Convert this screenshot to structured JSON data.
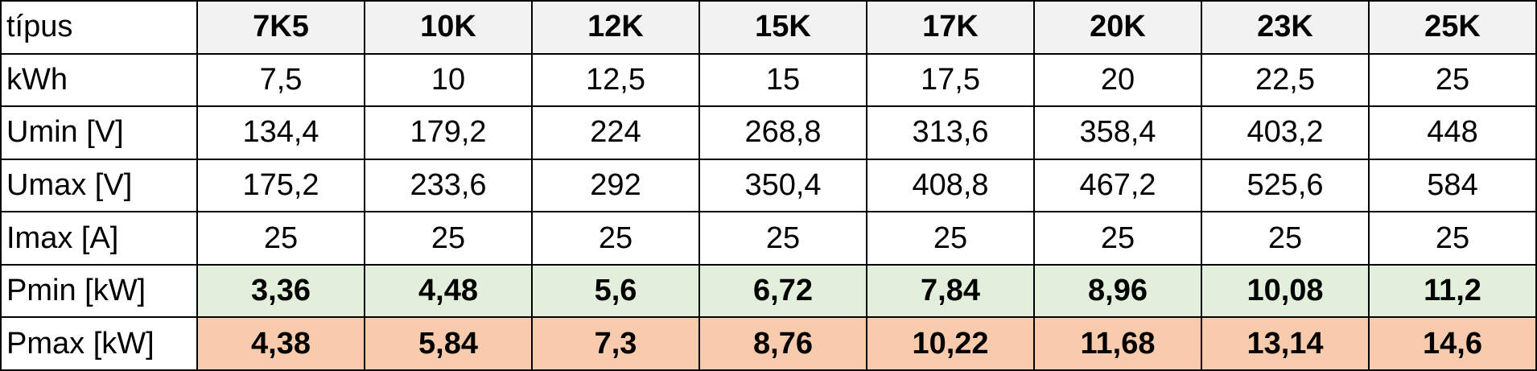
{
  "table": {
    "header": [
      "típus",
      "7K5",
      "10K",
      "12K",
      "15K",
      "17K",
      "20K",
      "23K",
      "25K"
    ],
    "rows": [
      [
        "kWh",
        "7,5",
        "10",
        "12,5",
        "15",
        "17,5",
        "20",
        "22,5",
        "25"
      ],
      [
        "Umin [V]",
        "134,4",
        "179,2",
        "224",
        "268,8",
        "313,6",
        "358,4",
        "403,2",
        "448"
      ],
      [
        "Umax [V]",
        "175,2",
        "233,6",
        "292",
        "350,4",
        "408,8",
        "467,2",
        "525,6",
        "584"
      ],
      [
        "Imax [A]",
        "25",
        "25",
        "25",
        "25",
        "25",
        "25",
        "25",
        "25"
      ],
      [
        "Pmin [kW]",
        "3,36",
        "4,48",
        "5,6",
        "6,72",
        "7,84",
        "8,96",
        "10,08",
        "11,2"
      ],
      [
        "Pmax [kW]",
        "4,38",
        "5,84",
        "7,3",
        "8,76",
        "10,22",
        "11,68",
        "13,14",
        "14,6"
      ]
    ]
  }
}
